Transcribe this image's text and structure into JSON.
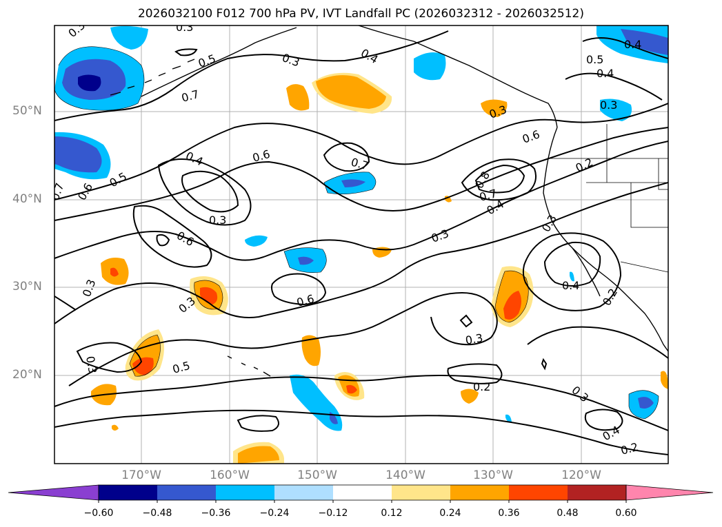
{
  "title": "2026032100 F012 700 hPa PV, IVT Landfall PC (2026032312 - 2026032512)",
  "lat_labels": [
    "50°N",
    "40°N",
    "30°N",
    "20°N"
  ],
  "lon_labels": [
    "170°W",
    "160°W",
    "150°W",
    "140°W",
    "130°W",
    "120°W"
  ],
  "colorbar": {
    "ticks": [
      "−0.60",
      "−0.48",
      "−0.36",
      "−0.24",
      "−0.12",
      "0.12",
      "0.24",
      "0.36",
      "0.48",
      "0.60"
    ],
    "colors": [
      "#8a3fd1",
      "#00008b",
      "#3558cf",
      "#00bfff",
      "#afdfff",
      "#ffffff",
      "#ffe58a",
      "#ffa500",
      "#ff4500",
      "#b22222",
      "#ff85ad"
    ]
  },
  "contour_labels": [
    "0.2",
    "0.3",
    "0.4",
    "0.5",
    "0.6",
    "0.7",
    "0.8"
  ]
}
